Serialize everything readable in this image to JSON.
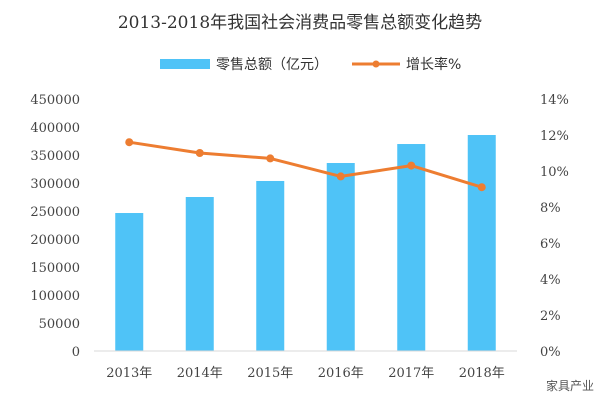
{
  "chart_data": {
    "type": "bar",
    "title": "2013-2018年我国社会消费品零售总额变化趋势",
    "categories": [
      "2013年",
      "2014年",
      "2015年",
      "2016年",
      "2017年",
      "2018年"
    ],
    "series": [
      {
        "name": "零售总额（亿元）",
        "type": "bar",
        "axis": "left",
        "color": "#4fc3f7",
        "values": [
          246400,
          275000,
          303600,
          335700,
          369600,
          385700
        ]
      },
      {
        "name": "增长率%",
        "type": "line",
        "axis": "right",
        "color": "#ed7d31",
        "values": [
          11.6,
          11.0,
          10.7,
          9.7,
          10.3,
          9.1
        ]
      }
    ],
    "left_axis": {
      "ylim": [
        0,
        450000
      ],
      "ticks": [
        "0",
        "50000",
        "100000",
        "150000",
        "200000",
        "250000",
        "300000",
        "350000",
        "400000",
        "450000"
      ]
    },
    "right_axis": {
      "ylim": [
        0,
        14
      ],
      "ticks": [
        "0%",
        "2%",
        "4%",
        "6%",
        "8%",
        "10%",
        "12%",
        "14%"
      ]
    },
    "legend": "top",
    "grid": false
  },
  "watermark": "家具产业"
}
